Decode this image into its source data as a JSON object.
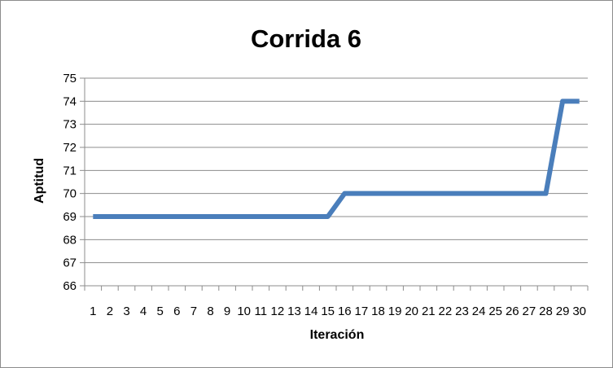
{
  "chart_data": {
    "type": "line",
    "title": "Corrida 6",
    "xlabel": "Iteración",
    "ylabel": "Aptitud",
    "x": [
      "1",
      "2",
      "3",
      "4",
      "5",
      "6",
      "7",
      "8",
      "9",
      "10",
      "11",
      "12",
      "13",
      "14",
      "15",
      "16",
      "17",
      "18",
      "19",
      "20",
      "21",
      "22",
      "23",
      "24",
      "25",
      "26",
      "27",
      "28",
      "29",
      "30"
    ],
    "series": [
      {
        "values": [
          69,
          69,
          69,
          69,
          69,
          69,
          69,
          69,
          69,
          69,
          69,
          69,
          69,
          69,
          69,
          70,
          70,
          70,
          70,
          70,
          70,
          70,
          70,
          70,
          70,
          70,
          70,
          70,
          74,
          74
        ]
      }
    ],
    "ylim": [
      66,
      75
    ],
    "yticks": [
      66,
      67,
      68,
      69,
      70,
      71,
      72,
      73,
      74,
      75
    ],
    "grid": true,
    "legend": "none",
    "colors": {
      "line": "#4a7ebb",
      "grid": "#8c8c8c",
      "axis": "#8c8c8c"
    }
  }
}
